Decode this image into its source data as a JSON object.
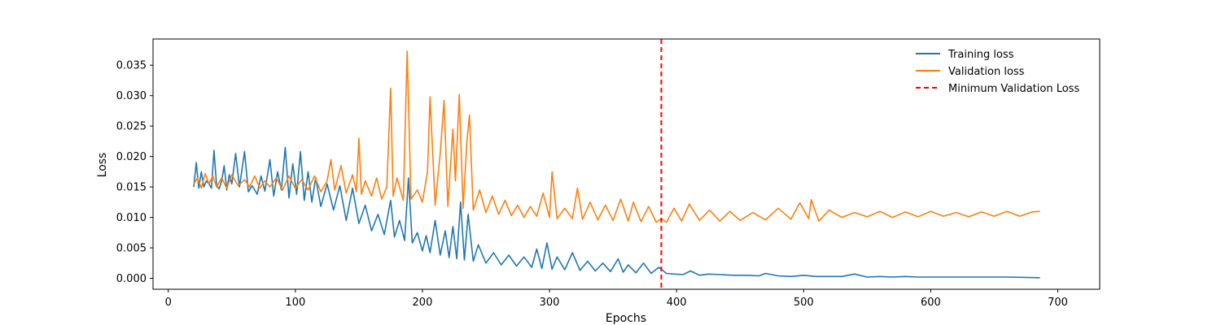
{
  "chart_data": {
    "type": "line",
    "title": "",
    "xlabel": "Epochs",
    "ylabel": "Loss",
    "xlim": [
      -12,
      733
    ],
    "ylim": [
      -0.0018,
      0.0393
    ],
    "xticks": [
      0,
      100,
      200,
      300,
      400,
      500,
      600,
      700
    ],
    "yticks": [
      0.0,
      0.005,
      0.01,
      0.015,
      0.02,
      0.025,
      0.03,
      0.035
    ],
    "xtick_labels": [
      "0",
      "100",
      "200",
      "300",
      "400",
      "500",
      "600",
      "700"
    ],
    "ytick_labels": [
      "0.000",
      "0.005",
      "0.010",
      "0.015",
      "0.020",
      "0.025",
      "0.030",
      "0.035"
    ],
    "grid": false,
    "legend_position": "top-right",
    "series": [
      {
        "name": "Training loss",
        "color": "#1f77b4",
        "x": [
          20,
          22,
          24,
          26,
          28,
          30,
          32,
          34,
          36,
          38,
          40,
          42,
          44,
          46,
          48,
          50,
          53,
          56,
          60,
          63,
          66,
          70,
          73,
          76,
          80,
          83,
          86,
          89,
          92,
          95,
          98,
          101,
          104,
          107,
          110,
          113,
          116,
          120,
          125,
          130,
          135,
          140,
          145,
          150,
          155,
          160,
          165,
          170,
          175,
          178,
          182,
          186,
          189,
          192,
          196,
          200,
          203,
          206,
          210,
          214,
          218,
          221,
          224,
          227,
          230,
          233,
          236,
          240,
          244,
          250,
          256,
          262,
          268,
          274,
          280,
          286,
          290,
          294,
          298,
          302,
          306,
          312,
          318,
          324,
          330,
          336,
          342,
          348,
          354,
          358,
          362,
          368,
          374,
          380,
          386,
          392,
          398,
          405,
          411,
          418,
          425,
          435,
          445,
          455,
          465,
          470,
          480,
          490,
          500,
          510,
          520,
          530,
          540,
          550,
          560,
          570,
          580,
          590,
          600,
          620,
          640,
          660,
          686
        ],
        "y": [
          0.015,
          0.019,
          0.0148,
          0.0175,
          0.015,
          0.016,
          0.0155,
          0.0148,
          0.021,
          0.0152,
          0.0147,
          0.016,
          0.0185,
          0.0145,
          0.017,
          0.0155,
          0.0205,
          0.015,
          0.0208,
          0.0142,
          0.0152,
          0.0138,
          0.0168,
          0.0143,
          0.0195,
          0.0135,
          0.0175,
          0.0145,
          0.0215,
          0.0132,
          0.0188,
          0.0138,
          0.0208,
          0.0128,
          0.0175,
          0.0125,
          0.0165,
          0.0118,
          0.0155,
          0.0112,
          0.0152,
          0.0095,
          0.0148,
          0.009,
          0.012,
          0.0078,
          0.0105,
          0.0072,
          0.0128,
          0.0068,
          0.0095,
          0.0062,
          0.0165,
          0.0058,
          0.0075,
          0.0045,
          0.007,
          0.0042,
          0.0095,
          0.0038,
          0.0078,
          0.0034,
          0.0085,
          0.0032,
          0.0125,
          0.003,
          0.0105,
          0.0028,
          0.0055,
          0.0025,
          0.0042,
          0.0022,
          0.0038,
          0.002,
          0.0035,
          0.0018,
          0.0048,
          0.0016,
          0.0058,
          0.0015,
          0.0035,
          0.0014,
          0.0042,
          0.0013,
          0.0028,
          0.0012,
          0.0025,
          0.0011,
          0.0032,
          0.001,
          0.0022,
          0.0009,
          0.0025,
          0.0008,
          0.0018,
          0.0008,
          0.0007,
          0.0006,
          0.0012,
          0.0005,
          0.0007,
          0.0006,
          0.0005,
          0.0005,
          0.0004,
          0.0008,
          0.0004,
          0.0003,
          0.0005,
          0.0003,
          0.0003,
          0.0003,
          0.0007,
          0.0002,
          0.0003,
          0.0002,
          0.0003,
          0.0002,
          0.0002,
          0.0002,
          0.0002,
          0.0002,
          0.0001
        ]
      },
      {
        "name": "Validation loss",
        "color": "#ff7f0e",
        "x": [
          20,
          23,
          26,
          29,
          32,
          35,
          38,
          42,
          46,
          50,
          55,
          60,
          64,
          68,
          72,
          76,
          80,
          85,
          90,
          95,
          100,
          105,
          110,
          115,
          120,
          125,
          128,
          131,
          136,
          140,
          145,
          148,
          150,
          152,
          155,
          160,
          164,
          168,
          172,
          175,
          177,
          180,
          185,
          188,
          191,
          196,
          200,
          204,
          206,
          210,
          214,
          217,
          220,
          224,
          226,
          229,
          232,
          235,
          237,
          240,
          245,
          250,
          255,
          260,
          265,
          270,
          275,
          280,
          285,
          290,
          295,
          300,
          302,
          306,
          312,
          318,
          322,
          326,
          332,
          338,
          344,
          350,
          356,
          362,
          366,
          372,
          378,
          384,
          388,
          392,
          398,
          404,
          410,
          418,
          426,
          434,
          442,
          450,
          460,
          470,
          480,
          490,
          497,
          504,
          506,
          512,
          520,
          530,
          540,
          550,
          560,
          570,
          580,
          590,
          600,
          610,
          620,
          630,
          640,
          650,
          660,
          670,
          680,
          686
        ],
        "y": [
          0.0155,
          0.0165,
          0.0148,
          0.0172,
          0.0155,
          0.0168,
          0.015,
          0.0165,
          0.0148,
          0.017,
          0.0152,
          0.0162,
          0.015,
          0.0168,
          0.0148,
          0.016,
          0.015,
          0.0165,
          0.0145,
          0.0168,
          0.0148,
          0.0162,
          0.0145,
          0.0168,
          0.0142,
          0.016,
          0.0195,
          0.0145,
          0.0185,
          0.014,
          0.017,
          0.0142,
          0.023,
          0.0138,
          0.016,
          0.0135,
          0.0165,
          0.013,
          0.015,
          0.0312,
          0.0135,
          0.0165,
          0.0128,
          0.0373,
          0.013,
          0.0145,
          0.0125,
          0.0175,
          0.0298,
          0.012,
          0.0205,
          0.0292,
          0.0118,
          0.0245,
          0.016,
          0.0302,
          0.0115,
          0.0225,
          0.0268,
          0.0112,
          0.0145,
          0.0108,
          0.0135,
          0.0105,
          0.0128,
          0.0103,
          0.012,
          0.01,
          0.0118,
          0.0102,
          0.014,
          0.01,
          0.0175,
          0.0098,
          0.0115,
          0.0098,
          0.0148,
          0.0097,
          0.0125,
          0.0096,
          0.012,
          0.0095,
          0.013,
          0.0094,
          0.0125,
          0.0093,
          0.0118,
          0.0092,
          0.0098,
          0.0092,
          0.0115,
          0.0094,
          0.0122,
          0.0095,
          0.0112,
          0.0094,
          0.011,
          0.0095,
          0.0108,
          0.0096,
          0.0115,
          0.0097,
          0.0124,
          0.0098,
          0.0129,
          0.0094,
          0.0112,
          0.01,
          0.0108,
          0.0101,
          0.011,
          0.01,
          0.0109,
          0.0101,
          0.011,
          0.0102,
          0.0108,
          0.0101,
          0.0109,
          0.0102,
          0.011,
          0.0102,
          0.0109,
          0.011
        ]
      }
    ],
    "vline": {
      "name": "Minimum Validation Loss",
      "x": 388,
      "color": "#ff0000",
      "style": "dashed"
    },
    "legend": [
      {
        "label": "Training loss",
        "color": "#1f77b4",
        "style": "solid"
      },
      {
        "label": "Validation loss",
        "color": "#ff7f0e",
        "style": "solid"
      },
      {
        "label": "Minimum Validation Loss",
        "color": "#ff0000",
        "style": "dashed"
      }
    ]
  }
}
